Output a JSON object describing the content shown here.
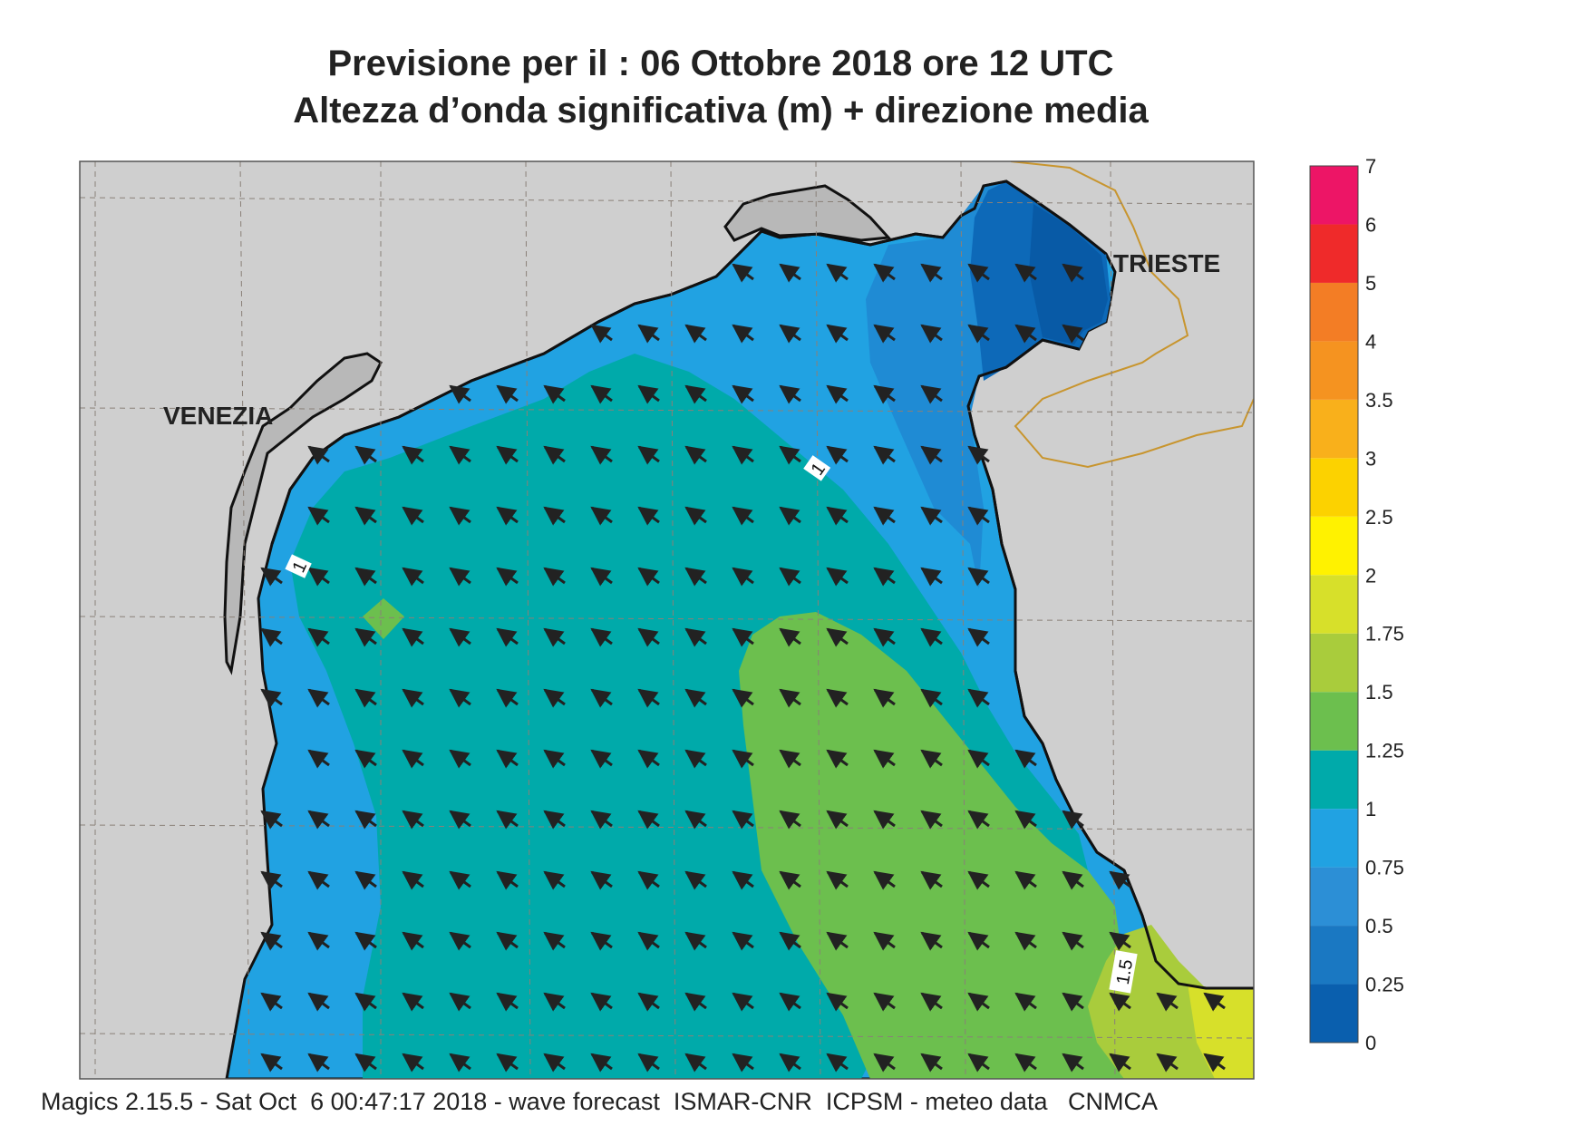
{
  "title": {
    "line1": "Previsione per il  :  06  Ottobre  2018   ore 12 UTC",
    "line2": "Altezza d’onda significativa (m) + direzione media"
  },
  "cities": [
    {
      "name": "VENEZIA"
    },
    {
      "name": "TRIESTE"
    }
  ],
  "contour_labels": [
    "1",
    "1",
    "1.5"
  ],
  "colorbar": {
    "labels": [
      "0",
      "0.25",
      "0.5",
      "0.75",
      "1",
      "1.25",
      "1.5",
      "1.75",
      "2",
      "2.5",
      "3",
      "3.5",
      "4",
      "5",
      "6",
      "7"
    ],
    "colors": [
      "#0a5fae",
      "#1a78c2",
      "#2c8fd6",
      "#21a2e2",
      "#00aaaa",
      "#6cbf4e",
      "#a9cc3c",
      "#d7e02a",
      "#fff200",
      "#fcd200",
      "#f9b01b",
      "#f59320",
      "#f37d25",
      "#ef2a2a",
      "#ed1566"
    ]
  },
  "wave_direction": "arrows pointing north-west (waves propagating toward NW)",
  "footer": "Magics 2.15.5 - Sat Oct  6 00:47:17 2018 - wave forecast  ISMAR-CNR  ICPSM - meteo data   CNMCA"
}
